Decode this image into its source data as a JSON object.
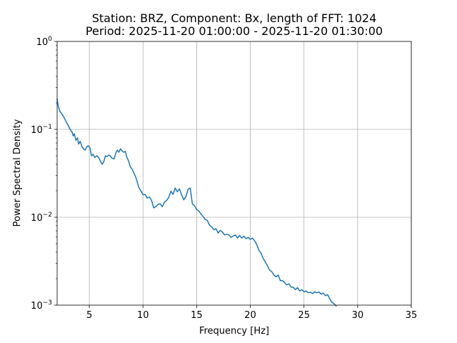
{
  "chart_data": {
    "type": "line",
    "title": "Station: BRZ, Component: Bx, length of FFT: 1024",
    "subtitle": "Period: 2025-11-20 01:00:00 - 2025-11-20 01:30:00",
    "xlabel": "Frequency [Hz]",
    "ylabel": "Power Spectral Density",
    "xlim": [
      2,
      35
    ],
    "ylim": [
      0.001,
      1
    ],
    "yscale": "log",
    "grid": true,
    "x_ticks": [
      5,
      10,
      15,
      20,
      25,
      30,
      35
    ],
    "x_tick_labels": [
      "5",
      "10",
      "15",
      "20",
      "25",
      "30",
      "35"
    ],
    "y_ticks": [
      0.001,
      0.01,
      0.1,
      1
    ],
    "y_tick_labels": [
      {
        "base": "10",
        "exp": "−3"
      },
      {
        "base": "10",
        "exp": "−2"
      },
      {
        "base": "10",
        "exp": "−1"
      },
      {
        "base": "10",
        "exp": "0"
      }
    ],
    "colors": {
      "series": "#1f77b4",
      "grid": "#b0b0b0"
    },
    "series": [
      {
        "x": [
          2.0,
          2.1,
          2.25,
          2.4,
          2.6,
          2.8,
          3.0,
          3.2,
          3.4,
          3.5,
          3.6,
          3.75,
          3.9,
          4.0,
          4.15,
          4.3,
          4.45,
          4.6,
          4.75,
          4.9,
          5.05,
          5.2,
          5.35,
          5.5,
          5.7,
          5.9,
          6.05,
          6.2,
          6.35,
          6.5,
          6.65,
          6.8,
          6.95,
          7.1,
          7.3,
          7.45,
          7.6,
          7.75,
          7.9,
          8.05,
          8.2,
          8.35,
          8.5,
          8.65,
          8.8,
          9.0,
          9.2,
          9.4,
          9.6,
          9.8,
          10.0,
          10.2,
          10.4,
          10.6,
          10.8,
          11.0,
          11.2,
          11.4,
          11.6,
          11.8,
          12.0,
          12.2,
          12.4,
          12.6,
          12.8,
          13.0,
          13.2,
          13.4,
          13.6,
          13.8,
          14.0,
          14.2,
          14.4,
          14.6,
          14.8,
          15.0,
          15.2,
          15.4,
          15.6,
          15.8,
          16.0,
          16.2,
          16.4,
          16.6,
          16.8,
          17.0,
          17.2,
          17.4,
          17.6,
          17.8,
          18.0,
          18.2,
          18.4,
          18.6,
          18.8,
          19.0,
          19.2,
          19.4,
          19.6,
          19.8,
          20.0,
          20.2,
          20.4,
          20.6,
          20.8,
          21.0,
          21.2,
          21.4,
          21.6,
          21.8,
          22.0,
          22.2,
          22.4,
          22.6,
          22.8,
          23.0,
          23.2,
          23.4,
          23.6,
          23.8,
          24.0,
          24.2,
          24.4,
          24.6,
          24.8,
          25.0,
          25.2,
          25.4,
          25.6,
          25.8,
          26.0,
          26.2,
          26.4,
          26.6,
          26.8,
          27.0,
          27.2,
          27.4,
          27.6,
          27.8,
          28.0
        ],
        "y": [
          0.22,
          0.185,
          0.16,
          0.152,
          0.14,
          0.125,
          0.113,
          0.1,
          0.093,
          0.084,
          0.089,
          0.075,
          0.08,
          0.068,
          0.073,
          0.064,
          0.06,
          0.058,
          0.063,
          0.065,
          0.062,
          0.05,
          0.052,
          0.048,
          0.05,
          0.047,
          0.043,
          0.04,
          0.043,
          0.05,
          0.049,
          0.051,
          0.05,
          0.047,
          0.046,
          0.053,
          0.058,
          0.055,
          0.06,
          0.057,
          0.055,
          0.056,
          0.048,
          0.044,
          0.038,
          0.035,
          0.031,
          0.027,
          0.022,
          0.02,
          0.018,
          0.0182,
          0.0165,
          0.017,
          0.0155,
          0.0128,
          0.0132,
          0.014,
          0.0142,
          0.0132,
          0.0148,
          0.0155,
          0.0168,
          0.0198,
          0.0182,
          0.0215,
          0.0195,
          0.021,
          0.018,
          0.0158,
          0.0172,
          0.0208,
          0.0215,
          0.0142,
          0.0135,
          0.0122,
          0.0118,
          0.0109,
          0.0102,
          0.0094,
          0.0092,
          0.0081,
          0.0078,
          0.0072,
          0.0074,
          0.0066,
          0.0071,
          0.0068,
          0.0063,
          0.0064,
          0.0063,
          0.0059,
          0.0061,
          0.0063,
          0.0058,
          0.0062,
          0.0058,
          0.0061,
          0.0057,
          0.0059,
          0.0056,
          0.0058,
          0.0054,
          0.0049,
          0.0042,
          0.0039,
          0.0034,
          0.0031,
          0.0028,
          0.0025,
          0.0024,
          0.0022,
          0.0021,
          0.0022,
          0.0019,
          0.0019,
          0.0018,
          0.0017,
          0.00175,
          0.0016,
          0.0016,
          0.0015,
          0.00158,
          0.00145,
          0.0015,
          0.00142,
          0.00145,
          0.00138,
          0.0014,
          0.00135,
          0.00142,
          0.00138,
          0.00141,
          0.00133,
          0.00137,
          0.00128,
          0.00132,
          0.00118,
          0.00108,
          0.00104,
          0.00098
        ]
      }
    ]
  }
}
